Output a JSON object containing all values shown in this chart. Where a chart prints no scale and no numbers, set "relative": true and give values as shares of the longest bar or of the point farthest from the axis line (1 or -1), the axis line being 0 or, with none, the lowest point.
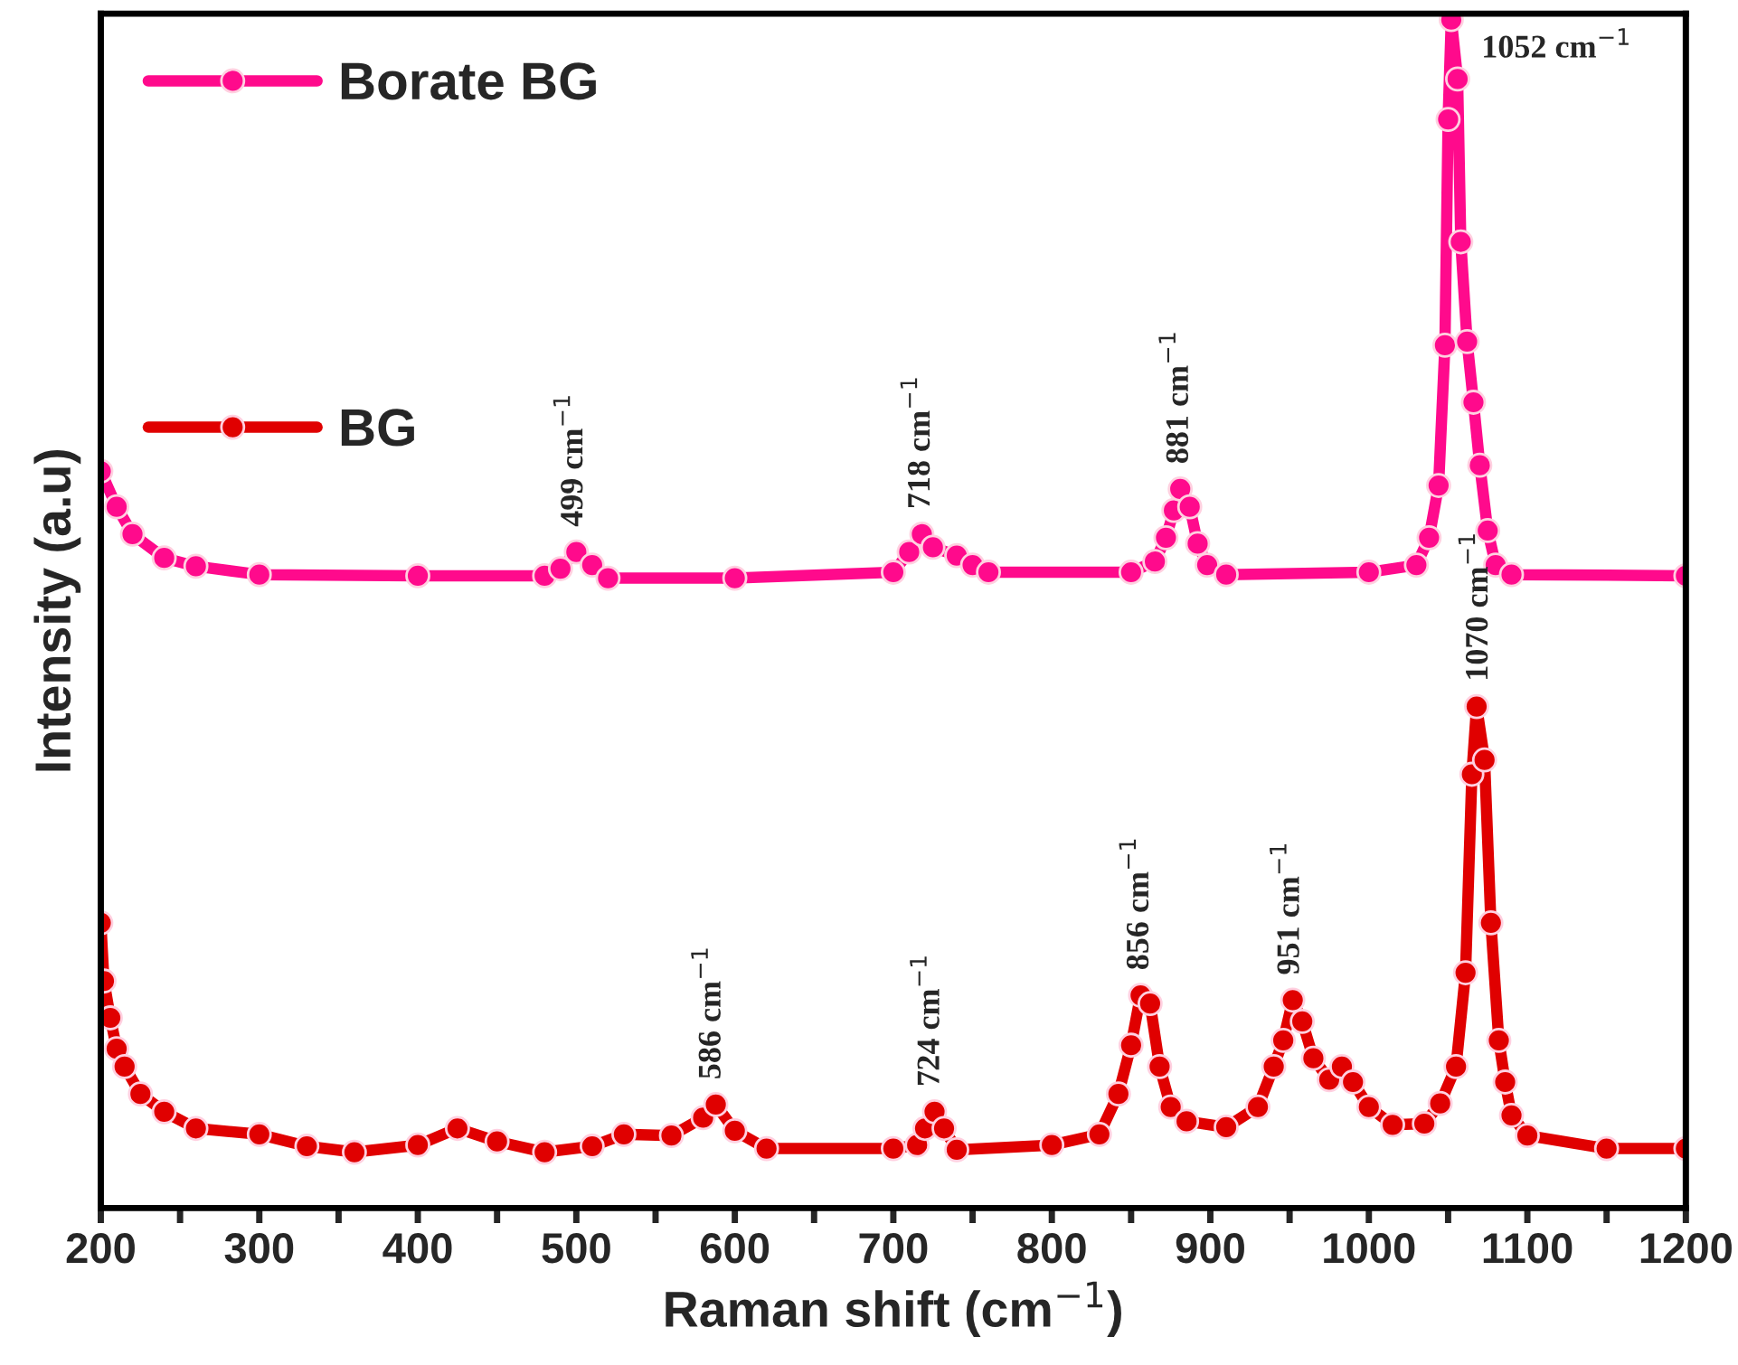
{
  "chart_data": {
    "type": "line",
    "xlabel": "Raman shift (cm$^{−1}$)",
    "ylabel": "Intensity (a.u)",
    "relative": true,
    "xlim": [
      200,
      1200
    ],
    "xticks": [
      200,
      {
        "value": 250,
        "label": null
      },
      300,
      {
        "value": 350,
        "label": null
      },
      400,
      {
        "value": 450,
        "label": null
      },
      500,
      {
        "value": 550,
        "label": null
      },
      600,
      {
        "value": 650,
        "label": null
      },
      700,
      {
        "value": 750,
        "label": null
      },
      800,
      {
        "value": 850,
        "label": null
      },
      900,
      {
        "value": 950,
        "label": null
      },
      1000,
      {
        "value": 1050,
        "label": null
      },
      1100,
      {
        "value": 1150,
        "label": null
      },
      1200
    ],
    "tick_labels": "x",
    "grid": false,
    "legend": "top left",
    "marker": "circle",
    "line_style": "solid",
    "series": [
      {
        "name": "Borate BG",
        "color": "#ff0a8c",
        "x": [
          200,
          210,
          220,
          240,
          260,
          300,
          400,
          480,
          490,
          500,
          510,
          520,
          600,
          700,
          710,
          718,
          725,
          740,
          750,
          760,
          850,
          865,
          872,
          877,
          881,
          887,
          892,
          898,
          910,
          1000,
          1030,
          1038,
          1044,
          1048,
          1050,
          1052,
          1056,
          1058,
          1062,
          1066,
          1070,
          1075,
          1080,
          1090,
          1200
        ],
        "values": [
          0.62,
          0.59,
          0.567,
          0.547,
          0.54,
          0.533,
          0.532,
          0.532,
          0.538,
          0.552,
          0.541,
          0.53,
          0.53,
          0.535,
          0.552,
          0.567,
          0.556,
          0.549,
          0.541,
          0.535,
          0.535,
          0.544,
          0.564,
          0.587,
          0.605,
          0.59,
          0.559,
          0.541,
          0.533,
          0.535,
          0.541,
          0.564,
          0.608,
          0.726,
          0.916,
          1.0,
          0.95,
          0.813,
          0.729,
          0.678,
          0.625,
          0.57,
          0.541,
          0.533,
          0.532
        ]
      },
      {
        "name": "BG",
        "color": "#e00000",
        "x": [
          200,
          202,
          206,
          210,
          215,
          225,
          240,
          260,
          300,
          330,
          360,
          400,
          425,
          450,
          480,
          510,
          530,
          560,
          580,
          588,
          600,
          620,
          700,
          715,
          720,
          726,
          732,
          740,
          800,
          830,
          842,
          850,
          856,
          862,
          868,
          875,
          885,
          910,
          930,
          940,
          946,
          952,
          958,
          965,
          975,
          983,
          990,
          1000,
          1015,
          1035,
          1045,
          1055,
          1061,
          1065,
          1068,
          1073,
          1077,
          1082,
          1086,
          1090,
          1100,
          1150,
          1200
        ],
        "values": [
          0.24,
          0.191,
          0.16,
          0.134,
          0.119,
          0.096,
          0.081,
          0.067,
          0.062,
          0.052,
          0.047,
          0.053,
          0.067,
          0.056,
          0.047,
          0.052,
          0.062,
          0.061,
          0.076,
          0.087,
          0.065,
          0.05,
          0.05,
          0.053,
          0.067,
          0.081,
          0.067,
          0.049,
          0.053,
          0.062,
          0.096,
          0.137,
          0.179,
          0.172,
          0.119,
          0.085,
          0.073,
          0.068,
          0.085,
          0.119,
          0.141,
          0.175,
          0.157,
          0.126,
          0.108,
          0.119,
          0.106,
          0.085,
          0.07,
          0.071,
          0.088,
          0.119,
          0.198,
          0.365,
          0.422,
          0.377,
          0.24,
          0.141,
          0.106,
          0.078,
          0.061,
          0.05,
          0.05
        ]
      }
    ],
    "annotations": [
      {
        "text": "499 cm$^{−1}$",
        "x": 499,
        "y": 0.552
      },
      {
        "text": "718 cm$^{−1}$",
        "x": 718,
        "y": 0.567
      },
      {
        "text": "881 cm$^{−1}$",
        "x": 881,
        "y": 0.605
      },
      {
        "text": "1052 cm$^{−1}$",
        "x": 1052,
        "y": 1.0
      },
      {
        "text": "586 cm$^{−1}$",
        "x": 586,
        "y": 0.087
      },
      {
        "text": "724 cm$^{−1}$",
        "x": 724,
        "y": 0.081
      },
      {
        "text": "856 cm$^{−1}$",
        "x": 856,
        "y": 0.179
      },
      {
        "text": "951 cm$^{−1}$",
        "x": 951,
        "y": 0.175
      },
      {
        "text": "1070 cm$^{−1}$",
        "x": 1070,
        "y": 0.422
      }
    ]
  }
}
